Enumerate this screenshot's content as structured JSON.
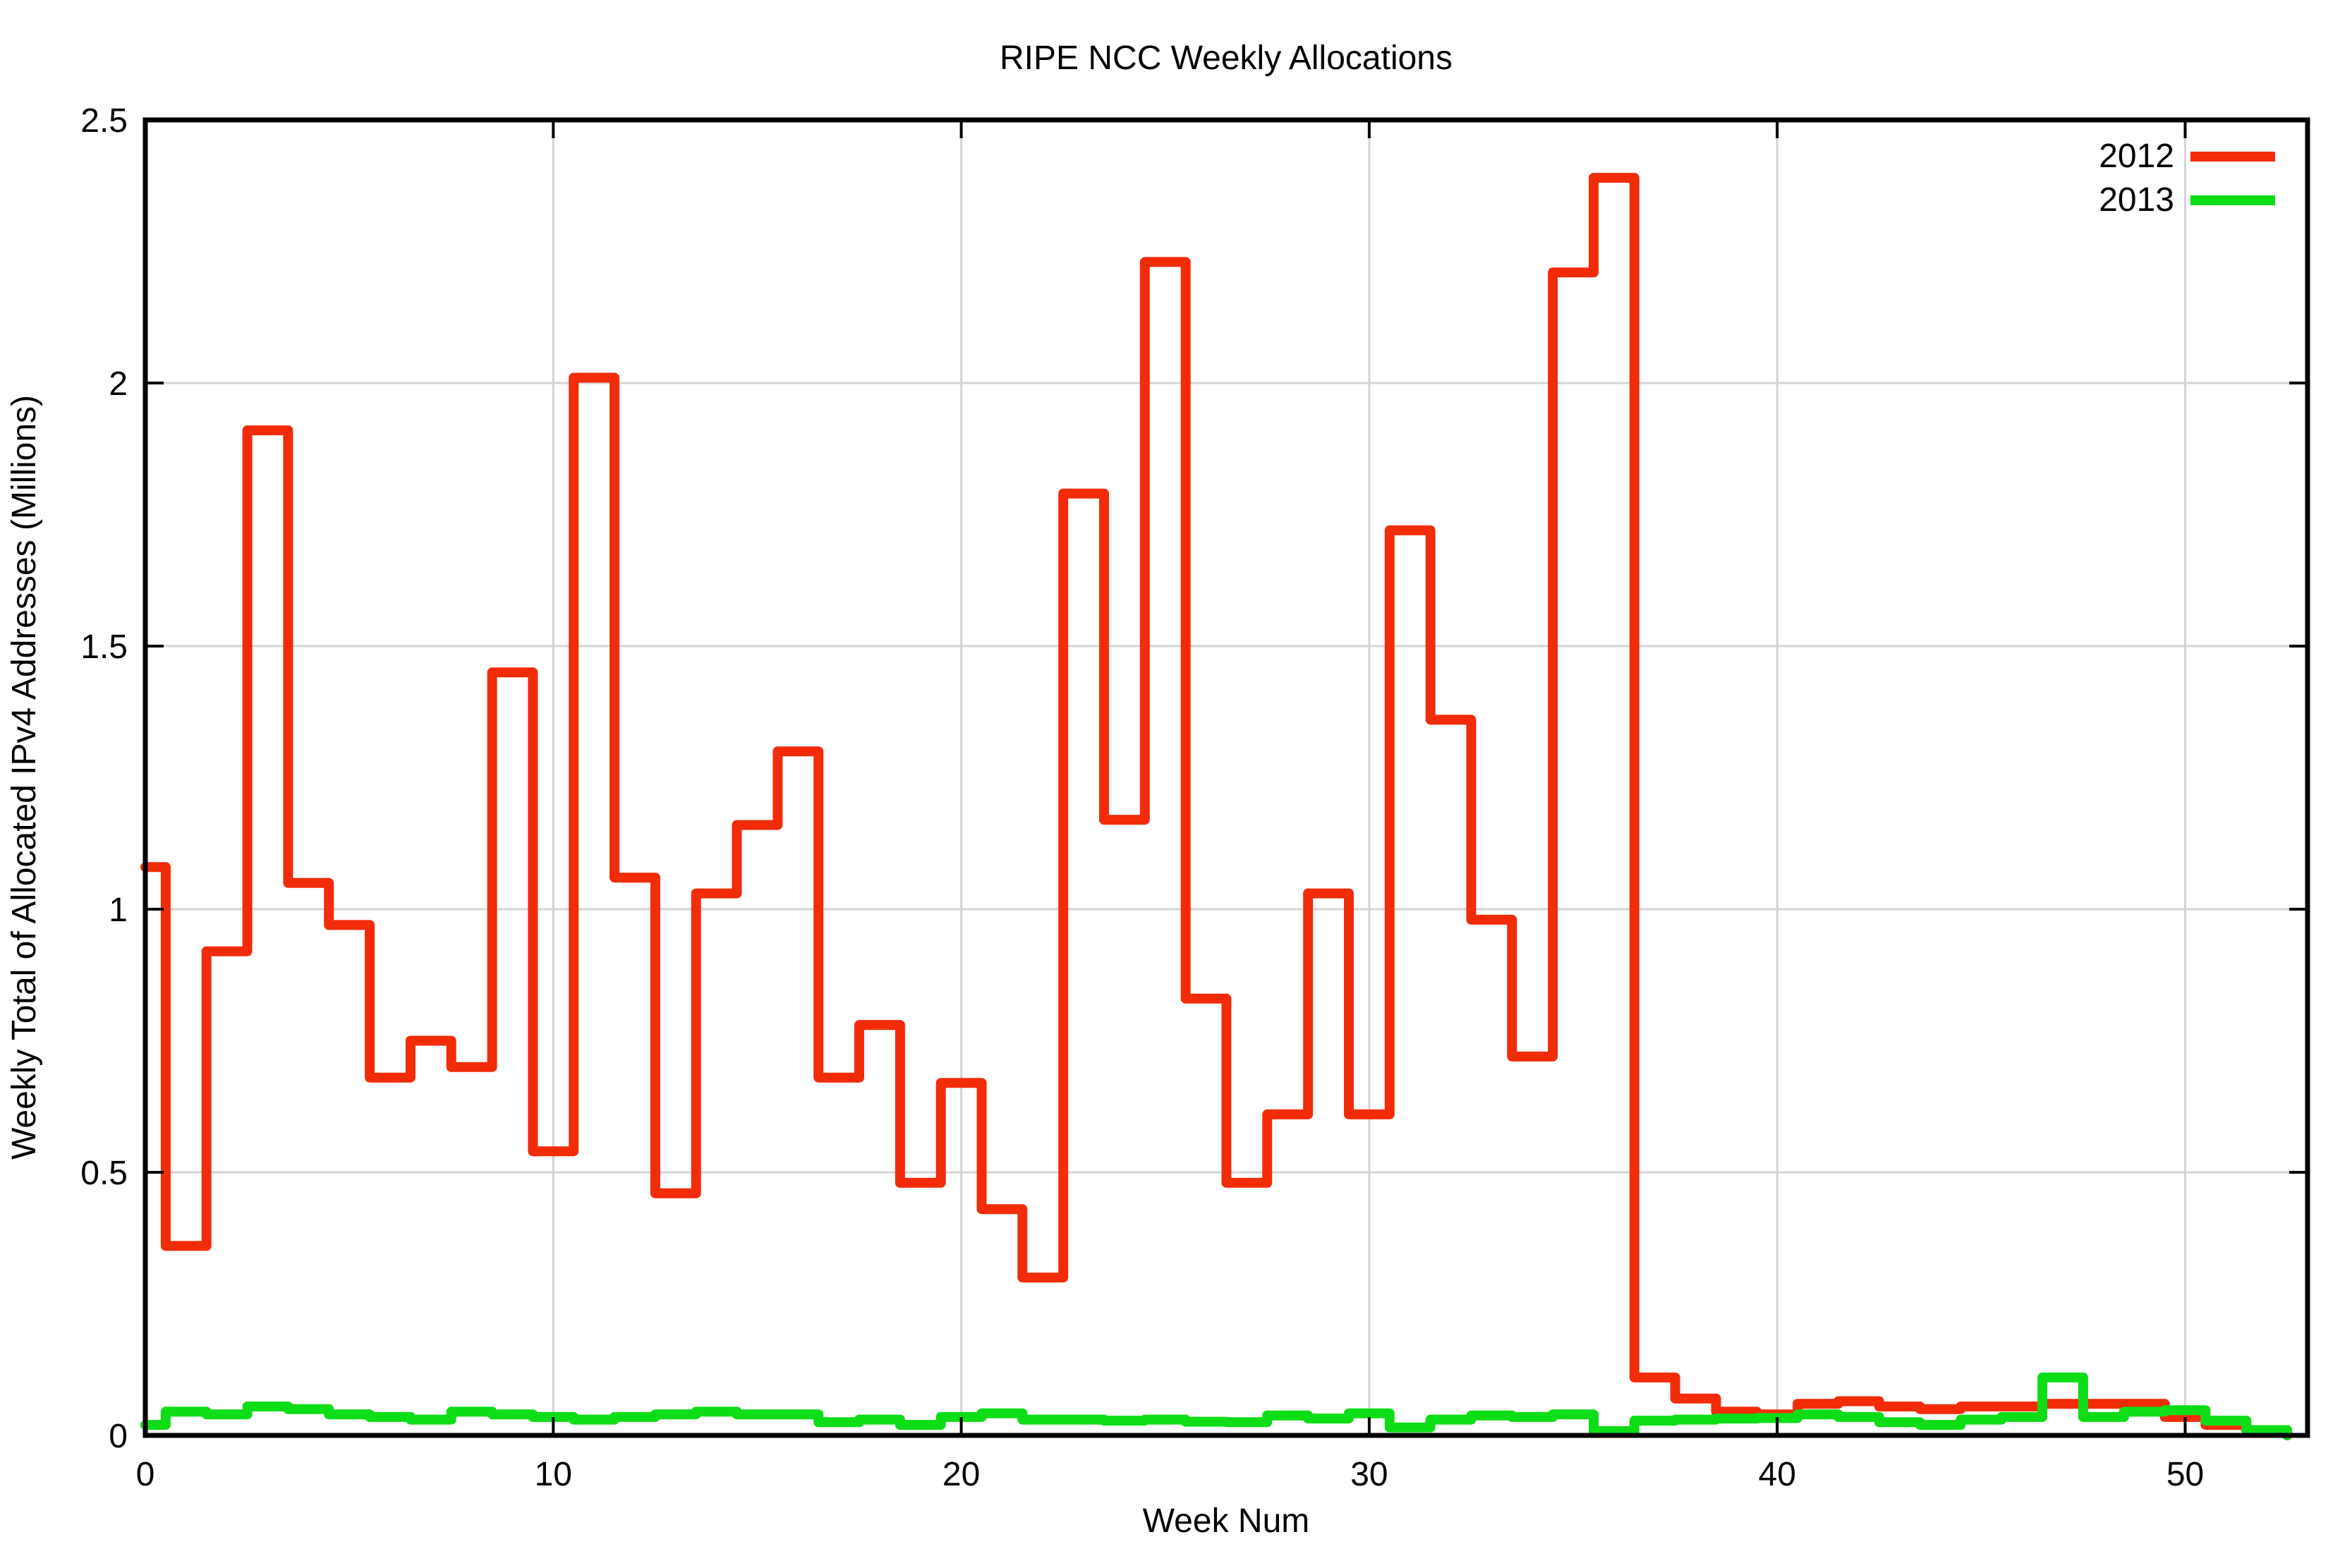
{
  "page": {
    "background": "#ffffff",
    "frame_color": "#000000",
    "grid_color": "#d4d4d4"
  },
  "chart_data": {
    "type": "line",
    "style": "histeps-step-centered",
    "title": "RIPE NCC Weekly Allocations",
    "xlabel": "Week Num",
    "ylabel": "Weekly Total of Allocated IPv4 Addresses (Millions)",
    "xlim": [
      0,
      53
    ],
    "ylim": [
      0,
      2.5
    ],
    "xticks": [
      0,
      10,
      20,
      30,
      40,
      50
    ],
    "yticks": [
      0,
      0.5,
      1,
      1.5,
      2,
      2.5
    ],
    "grid": true,
    "legend_position": "top-right",
    "x": [
      0,
      1,
      2,
      3,
      4,
      5,
      6,
      7,
      8,
      9,
      10,
      11,
      12,
      13,
      14,
      15,
      16,
      17,
      18,
      19,
      20,
      21,
      22,
      23,
      24,
      25,
      26,
      27,
      28,
      29,
      30,
      31,
      32,
      33,
      34,
      35,
      36,
      37,
      38,
      39,
      40,
      41,
      42,
      43,
      44,
      45,
      46,
      47,
      48,
      49,
      50,
      51,
      52
    ],
    "series": [
      {
        "name": "2012",
        "color": "#f22c09",
        "values": [
          1.08,
          0.36,
          0.92,
          1.91,
          1.05,
          0.97,
          0.68,
          0.75,
          0.7,
          1.45,
          0.54,
          2.01,
          1.06,
          0.46,
          1.03,
          1.16,
          1.3,
          0.68,
          0.78,
          0.48,
          0.67,
          0.43,
          0.3,
          1.79,
          1.17,
          2.23,
          0.83,
          0.48,
          0.61,
          1.03,
          0.61,
          1.72,
          1.36,
          0.98,
          0.72,
          2.21,
          2.39,
          0.11,
          0.07,
          0.045,
          0.04,
          0.06,
          0.065,
          0.055,
          0.05,
          0.055,
          0.055,
          0.06,
          0.06,
          0.06,
          0.035,
          0.02,
          0.01
        ]
      },
      {
        "name": "2013",
        "color": "#0ddd16",
        "values": [
          0.02,
          0.045,
          0.04,
          0.055,
          0.05,
          0.04,
          0.035,
          0.03,
          0.045,
          0.04,
          0.035,
          0.03,
          0.035,
          0.04,
          0.045,
          0.04,
          0.04,
          0.025,
          0.03,
          0.02,
          0.035,
          0.042,
          0.03,
          0.03,
          0.028,
          0.03,
          0.026,
          0.025,
          0.038,
          0.032,
          0.042,
          0.015,
          0.03,
          0.038,
          0.035,
          0.04,
          0.008,
          0.028,
          0.03,
          0.032,
          0.033,
          0.04,
          0.035,
          0.025,
          0.02,
          0.03,
          0.035,
          0.11,
          0.035,
          0.045,
          0.048,
          0.028,
          0.01
        ]
      }
    ]
  }
}
